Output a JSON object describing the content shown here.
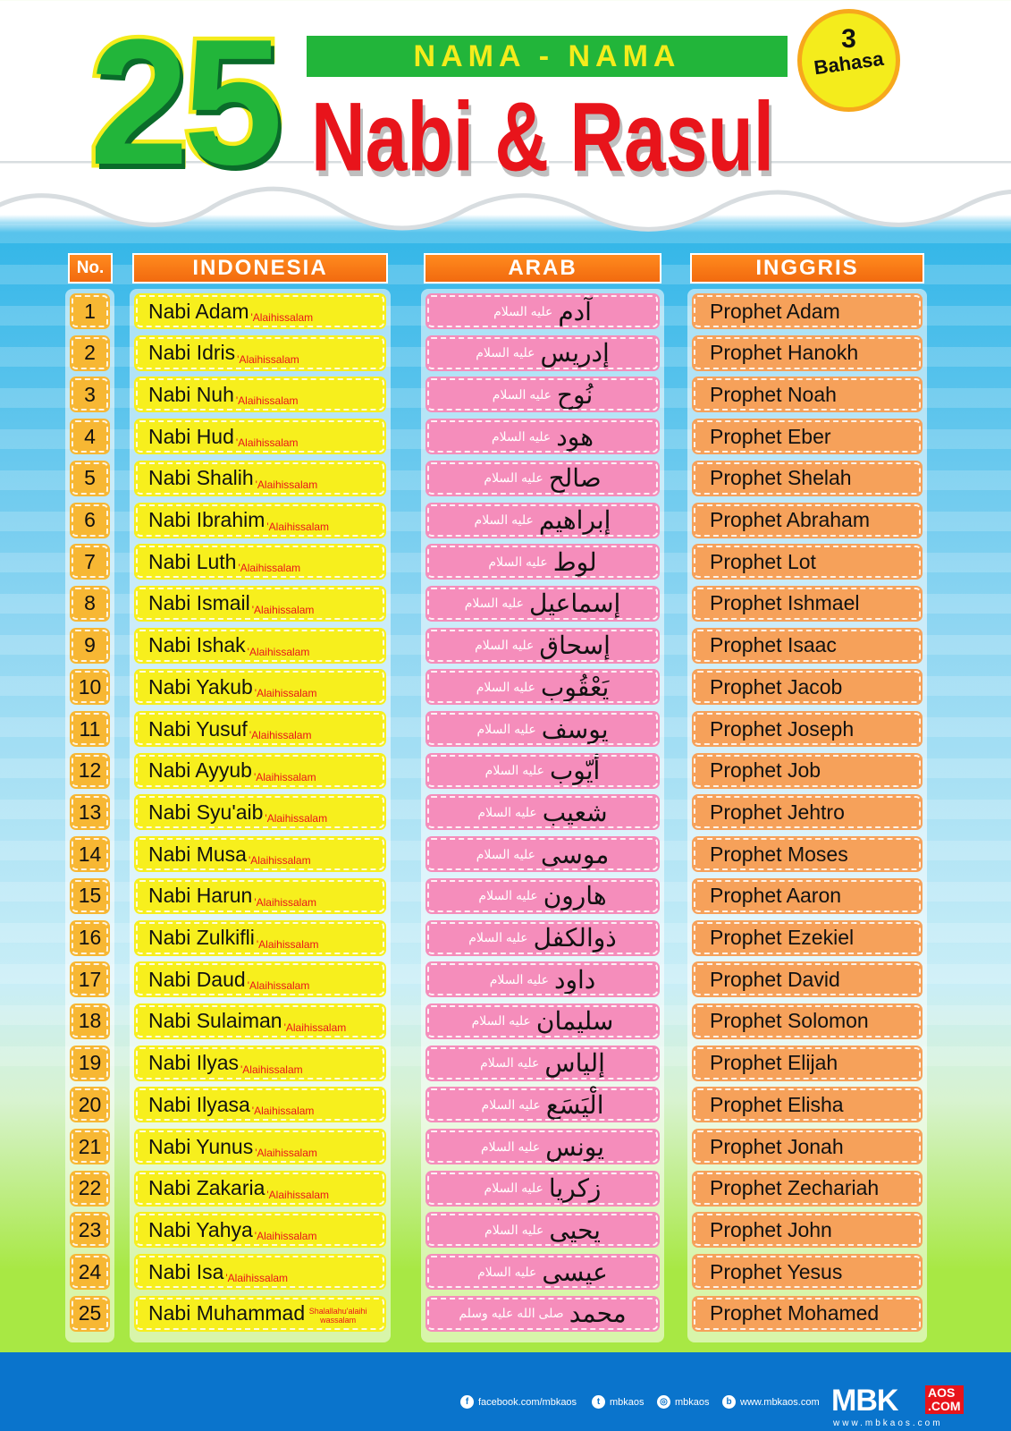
{
  "title": {
    "number": "25",
    "subtitle": "NAMA - NAMA",
    "main": "Nabi & Rasul",
    "badge_number": "3",
    "badge_text": "Bahasa"
  },
  "headers": {
    "no": "No.",
    "indonesia": "INDONESIA",
    "arab": "ARAB",
    "inggris": "INGGRIS"
  },
  "salutation": {
    "id": "'Alaihissalam",
    "ar": "عليه السلام",
    "id_muhammad": "Shalallahu'alaihi wassalam",
    "ar_muhammad": "صلى الله عليه وسلم"
  },
  "rows": [
    {
      "no": "1",
      "id": "Nabi Adam",
      "ar": "آدم",
      "en": "Prophet Adam"
    },
    {
      "no": "2",
      "id": "Nabi Idris",
      "ar": "إدريس",
      "en": "Prophet Hanokh"
    },
    {
      "no": "3",
      "id": "Nabi Nuh",
      "ar": "نُوح",
      "en": "Prophet Noah"
    },
    {
      "no": "4",
      "id": "Nabi Hud",
      "ar": "هود",
      "en": "Prophet Eber"
    },
    {
      "no": "5",
      "id": "Nabi Shalih",
      "ar": "صالح",
      "en": "Prophet Shelah"
    },
    {
      "no": "6",
      "id": "Nabi Ibrahim",
      "ar": "إبراهيم",
      "en": "Prophet Abraham"
    },
    {
      "no": "7",
      "id": "Nabi Luth",
      "ar": "لوط",
      "en": "Prophet Lot"
    },
    {
      "no": "8",
      "id": "Nabi Ismail",
      "ar": "إسماعيل",
      "en": "Prophet Ishmael"
    },
    {
      "no": "9",
      "id": "Nabi Ishak",
      "ar": "إسحاق",
      "en": "Prophet Isaac"
    },
    {
      "no": "10",
      "id": "Nabi Yakub",
      "ar": "يَعْقُوب",
      "en": "Prophet Jacob"
    },
    {
      "no": "11",
      "id": "Nabi Yusuf",
      "ar": "يوسف",
      "en": "Prophet Joseph"
    },
    {
      "no": "12",
      "id": "Nabi Ayyub",
      "ar": "أيّوب",
      "en": "Prophet Job"
    },
    {
      "no": "13",
      "id": "Nabi Syu'aib",
      "ar": "شعيب",
      "en": "Prophet Jehtro"
    },
    {
      "no": "14",
      "id": "Nabi Musa",
      "ar": "موسى",
      "en": "Prophet Moses"
    },
    {
      "no": "15",
      "id": "Nabi Harun",
      "ar": "هارون",
      "en": "Prophet Aaron"
    },
    {
      "no": "16",
      "id": "Nabi Zulkifli",
      "ar": "ذوالكفل",
      "en": "Prophet Ezekiel"
    },
    {
      "no": "17",
      "id": "Nabi Daud",
      "ar": "داود",
      "en": "Prophet David"
    },
    {
      "no": "18",
      "id": "Nabi Sulaiman",
      "ar": "سليمان",
      "en": "Prophet Solomon"
    },
    {
      "no": "19",
      "id": "Nabi Ilyas",
      "ar": "إلياس",
      "en": "Prophet Elijah"
    },
    {
      "no": "20",
      "id": "Nabi Ilyasa",
      "ar": "الْيَسَع",
      "en": "Prophet Elisha"
    },
    {
      "no": "21",
      "id": "Nabi Yunus",
      "ar": "يونس",
      "en": "Prophet Jonah"
    },
    {
      "no": "22",
      "id": "Nabi Zakaria",
      "ar": "زكريا",
      "en": "Prophet Zechariah"
    },
    {
      "no": "23",
      "id": "Nabi Yahya",
      "ar": "يحيى",
      "en": "Prophet John"
    },
    {
      "no": "24",
      "id": "Nabi Isa",
      "ar": "عيسى",
      "en": "Prophet Yesus"
    },
    {
      "no": "25",
      "id": "Nabi Muhammad",
      "ar": "محمد",
      "en": "Prophet Mohamed"
    }
  ],
  "footer": {
    "facebook": "facebook.com/mbkaos",
    "twitter": "mbkaos",
    "instagram": "mbkaos",
    "website": "www.mbkaos.com",
    "logo_main": "MBK",
    "logo_aos": "AOS",
    "logo_com": ".COM",
    "logo_url": "www.mbkaos.com"
  },
  "colors": {
    "green": "#22b53a",
    "red": "#e8141b",
    "yellow": "#f7ef1d",
    "pink": "#f58dbb",
    "orange": "#f6a15a",
    "header_orange": "#f26a0f",
    "footer_blue": "#0a74cc"
  }
}
